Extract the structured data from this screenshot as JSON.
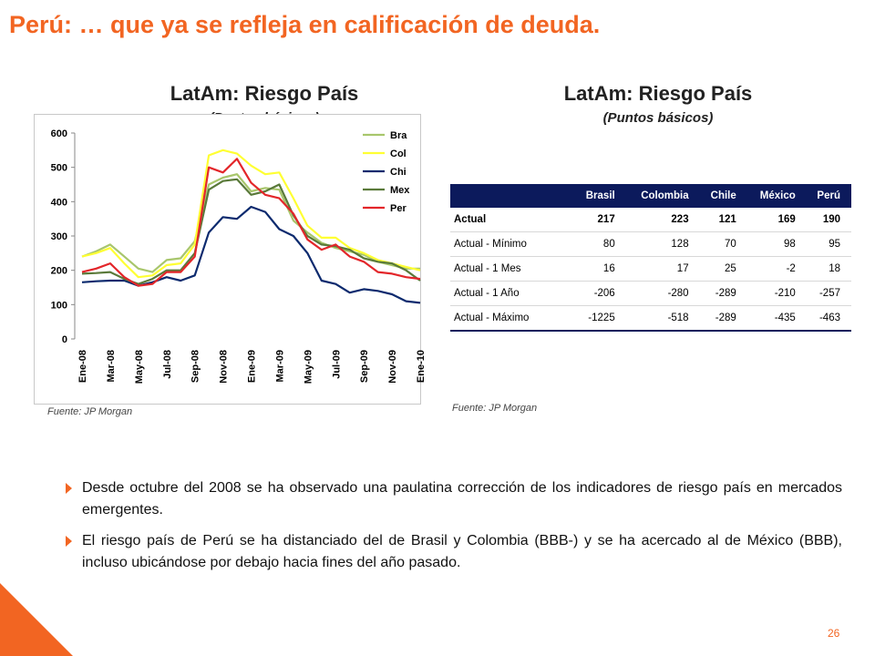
{
  "slide": {
    "title": "Perú: … que ya se refleja en calificación de deuda.",
    "page_number": "26",
    "accent_color": "#f26522"
  },
  "left_chart": {
    "heading": "LatAm: Riesgo País",
    "subheading": "(Puntos básicos)",
    "source": "Fuente: JP Morgan"
  },
  "right_table": {
    "heading": "LatAm: Riesgo País",
    "subheading": "(Puntos básicos)",
    "source": "Fuente: JP Morgan",
    "columns": [
      "",
      "Brasil",
      "Colombia",
      "Chile",
      "México",
      "Perú"
    ],
    "rows": [
      {
        "label": "Actual",
        "values": [
          "217",
          "223",
          "121",
          "169",
          "190"
        ]
      },
      {
        "label": "Actual - Mínimo",
        "values": [
          "80",
          "128",
          "70",
          "98",
          "95"
        ]
      },
      {
        "label": "Actual - 1 Mes",
        "values": [
          "16",
          "17",
          "25",
          "-2",
          "18"
        ]
      },
      {
        "label": "Actual - 1 Año",
        "values": [
          "-206",
          "-280",
          "-289",
          "-210",
          "-257"
        ]
      },
      {
        "label": "Actual - Máximo",
        "values": [
          "-1225",
          "-518",
          "-289",
          "-435",
          "-463"
        ]
      }
    ]
  },
  "bullets": [
    "Desde octubre del 2008 se ha observado una paulatina corrección de los indicadores de riesgo país en mercados emergentes.",
    "El riesgo país de Perú se ha distanciado del de Brasil y Colombia (BBB-) y se ha acercado al de México (BBB), incluso ubicándose por debajo hacia fines del año pasado."
  ],
  "chart_data": {
    "type": "line",
    "title": "LatAm: Riesgo País",
    "subtitle": "(Puntos básicos)",
    "ylim": [
      0,
      600
    ],
    "yticks": [
      0,
      100,
      200,
      300,
      400,
      500,
      600
    ],
    "grid": false,
    "legend_position": "right",
    "x": [
      "Ene-08",
      "Feb-08",
      "Mar-08",
      "Abr-08",
      "May-08",
      "Jun-08",
      "Jul-08",
      "Ago-08",
      "Sep-08",
      "Oct-08",
      "Nov-08",
      "Dic-08",
      "Ene-09",
      "Feb-09",
      "Mar-09",
      "Abr-09",
      "May-09",
      "Jun-09",
      "Jul-09",
      "Ago-09",
      "Sep-09",
      "Oct-09",
      "Nov-09",
      "Dic-09",
      "Ene-10"
    ],
    "xtick_labels": [
      "Ene-08",
      "",
      "Mar-08",
      "",
      "May-08",
      "",
      "Jul-08",
      "",
      "Sep-08",
      "",
      "Nov-08",
      "",
      "Ene-09",
      "",
      "Mar-09",
      "",
      "May-09",
      "",
      "Jul-09",
      "",
      "Sep-09",
      "",
      "Nov-09",
      "",
      "Ene-10"
    ],
    "series": [
      {
        "name": "Bra",
        "color": "#a8c66c",
        "values": [
          240,
          255,
          275,
          240,
          205,
          195,
          230,
          235,
          285,
          450,
          470,
          480,
          430,
          440,
          435,
          345,
          310,
          280,
          265,
          255,
          245,
          225,
          215,
          205,
          205
        ]
      },
      {
        "name": "Col",
        "color": "#ffff33",
        "values": [
          240,
          250,
          265,
          220,
          180,
          185,
          215,
          220,
          275,
          535,
          550,
          540,
          505,
          480,
          485,
          410,
          330,
          295,
          295,
          265,
          250,
          230,
          220,
          210,
          200
        ]
      },
      {
        "name": "Chi",
        "color": "#0c2a6e",
        "values": [
          165,
          168,
          170,
          170,
          155,
          165,
          180,
          170,
          185,
          310,
          355,
          350,
          385,
          370,
          320,
          300,
          250,
          170,
          160,
          135,
          145,
          140,
          130,
          110,
          105
        ]
      },
      {
        "name": "Mex",
        "color": "#5a7a3a",
        "values": [
          190,
          192,
          195,
          175,
          160,
          175,
          200,
          200,
          250,
          435,
          460,
          465,
          420,
          430,
          450,
          360,
          300,
          275,
          270,
          260,
          235,
          225,
          220,
          200,
          170
        ]
      },
      {
        "name": "Per",
        "color": "#e3262a",
        "values": [
          195,
          205,
          220,
          180,
          155,
          160,
          195,
          195,
          240,
          500,
          485,
          525,
          455,
          420,
          410,
          365,
          290,
          260,
          275,
          240,
          225,
          195,
          190,
          180,
          175
        ]
      }
    ]
  }
}
